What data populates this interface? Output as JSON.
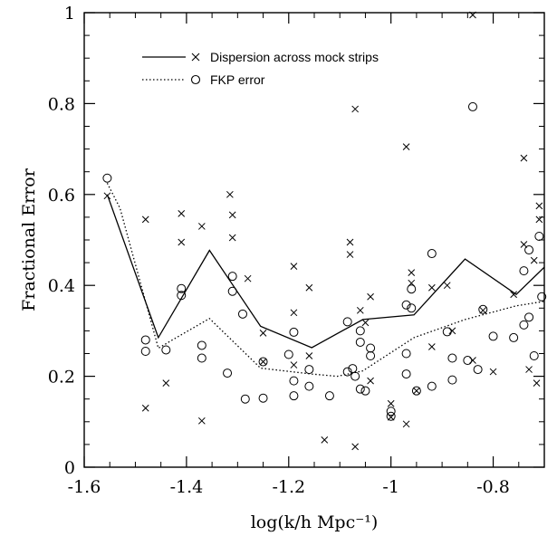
{
  "chart_data": {
    "type": "scatter",
    "xlabel": "log(k/h Mpc⁻¹)",
    "ylabel": "Fractional Error",
    "xlim": [
      -1.6,
      -0.7
    ],
    "ylim": [
      0,
      1
    ],
    "xticks": [
      "-1.6",
      "-1.4",
      "-1.2",
      "-1",
      "-0.8"
    ],
    "xtick_values": [
      -1.6,
      -1.4,
      -1.2,
      -1.0,
      -0.8
    ],
    "yticks": [
      "0",
      "0.2",
      "0.4",
      "0.6",
      "0.8",
      "1"
    ],
    "ytick_values": [
      0,
      0.2,
      0.4,
      0.6,
      0.8,
      1.0
    ],
    "legend_position": "top-left",
    "series": [
      {
        "name": "Dispersion across mock strips",
        "style": "solid-line",
        "marker": "x",
        "line_x": [
          -1.555,
          -1.455,
          -1.355,
          -1.255,
          -1.155,
          -1.055,
          -0.955,
          -0.855,
          -0.755,
          -0.7
        ],
        "line_y": [
          0.6,
          0.285,
          0.477,
          0.31,
          0.263,
          0.325,
          0.335,
          0.458,
          0.38,
          0.44
        ],
        "points": [
          [
            -1.555,
            0.597
          ],
          [
            -1.48,
            0.545
          ],
          [
            -1.48,
            0.13
          ],
          [
            -1.44,
            0.185
          ],
          [
            -1.41,
            0.558
          ],
          [
            -1.41,
            0.495
          ],
          [
            -1.37,
            0.53
          ],
          [
            -1.37,
            0.102
          ],
          [
            -1.315,
            0.6
          ],
          [
            -1.31,
            0.555
          ],
          [
            -1.31,
            0.505
          ],
          [
            -1.28,
            0.415
          ],
          [
            -1.25,
            0.295
          ],
          [
            -1.25,
            0.232
          ],
          [
            -1.19,
            0.442
          ],
          [
            -1.19,
            0.34
          ],
          [
            -1.19,
            0.225
          ],
          [
            -1.16,
            0.395
          ],
          [
            -1.16,
            0.245
          ],
          [
            -1.13,
            0.06
          ],
          [
            -1.08,
            0.495
          ],
          [
            -1.08,
            0.468
          ],
          [
            -1.07,
            0.788
          ],
          [
            -1.07,
            0.045
          ],
          [
            -1.06,
            0.345
          ],
          [
            -1.05,
            0.318
          ],
          [
            -1.04,
            0.375
          ],
          [
            -1.04,
            0.19
          ],
          [
            -1.0,
            0.14
          ],
          [
            -1.0,
            0.11
          ],
          [
            -0.97,
            0.705
          ],
          [
            -0.97,
            0.095
          ],
          [
            -0.96,
            0.428
          ],
          [
            -0.96,
            0.405
          ],
          [
            -0.95,
            0.168
          ],
          [
            -0.92,
            0.395
          ],
          [
            -0.92,
            0.265
          ],
          [
            -0.89,
            0.4
          ],
          [
            -0.88,
            0.3
          ],
          [
            -0.84,
            0.995
          ],
          [
            -0.84,
            0.235
          ],
          [
            -0.82,
            0.345
          ],
          [
            -0.8,
            0.21
          ],
          [
            -0.76,
            0.38
          ],
          [
            -0.74,
            0.68
          ],
          [
            -0.74,
            0.49
          ],
          [
            -0.73,
            0.215
          ],
          [
            -0.72,
            0.455
          ],
          [
            -0.71,
            0.575
          ],
          [
            -0.71,
            0.545
          ],
          [
            -0.715,
            0.185
          ]
        ]
      },
      {
        "name": "FKP error",
        "style": "dotted-line",
        "marker": "o",
        "line_x": [
          -1.555,
          -1.53,
          -1.455,
          -1.355,
          -1.255,
          -1.155,
          -1.105,
          -1.055,
          -0.955,
          -0.855,
          -0.755,
          -0.7
        ],
        "line_y": [
          0.625,
          0.57,
          0.262,
          0.327,
          0.218,
          0.205,
          0.2,
          0.212,
          0.285,
          0.325,
          0.355,
          0.365
        ],
        "points": [
          [
            -1.555,
            0.636
          ],
          [
            -1.48,
            0.28
          ],
          [
            -1.48,
            0.255
          ],
          [
            -1.44,
            0.258
          ],
          [
            -1.41,
            0.393
          ],
          [
            -1.41,
            0.378
          ],
          [
            -1.37,
            0.268
          ],
          [
            -1.37,
            0.24
          ],
          [
            -1.32,
            0.207
          ],
          [
            -1.31,
            0.42
          ],
          [
            -1.31,
            0.387
          ],
          [
            -1.29,
            0.337
          ],
          [
            -1.285,
            0.15
          ],
          [
            -1.25,
            0.232
          ],
          [
            -1.25,
            0.152
          ],
          [
            -1.2,
            0.248
          ],
          [
            -1.19,
            0.297
          ],
          [
            -1.19,
            0.19
          ],
          [
            -1.19,
            0.157
          ],
          [
            -1.16,
            0.215
          ],
          [
            -1.16,
            0.178
          ],
          [
            -1.12,
            0.157
          ],
          [
            -1.085,
            0.32
          ],
          [
            -1.085,
            0.21
          ],
          [
            -1.075,
            0.217
          ],
          [
            -1.07,
            0.2
          ],
          [
            -1.06,
            0.3
          ],
          [
            -1.06,
            0.275
          ],
          [
            -1.06,
            0.172
          ],
          [
            -1.05,
            0.168
          ],
          [
            -1.04,
            0.262
          ],
          [
            -1.04,
            0.245
          ],
          [
            -1.0,
            0.123
          ],
          [
            -1.0,
            0.112
          ],
          [
            -0.97,
            0.357
          ],
          [
            -0.97,
            0.25
          ],
          [
            -0.97,
            0.205
          ],
          [
            -0.96,
            0.392
          ],
          [
            -0.96,
            0.35
          ],
          [
            -0.95,
            0.168
          ],
          [
            -0.92,
            0.47
          ],
          [
            -0.92,
            0.178
          ],
          [
            -0.89,
            0.298
          ],
          [
            -0.88,
            0.24
          ],
          [
            -0.88,
            0.192
          ],
          [
            -0.85,
            0.235
          ],
          [
            -0.84,
            0.793
          ],
          [
            -0.83,
            0.215
          ],
          [
            -0.82,
            0.347
          ],
          [
            -0.8,
            0.288
          ],
          [
            -0.76,
            0.285
          ],
          [
            -0.74,
            0.432
          ],
          [
            -0.74,
            0.313
          ],
          [
            -0.73,
            0.478
          ],
          [
            -0.73,
            0.33
          ],
          [
            -0.72,
            0.245
          ],
          [
            -0.71,
            0.508
          ],
          [
            -0.705,
            0.375
          ]
        ]
      }
    ]
  }
}
